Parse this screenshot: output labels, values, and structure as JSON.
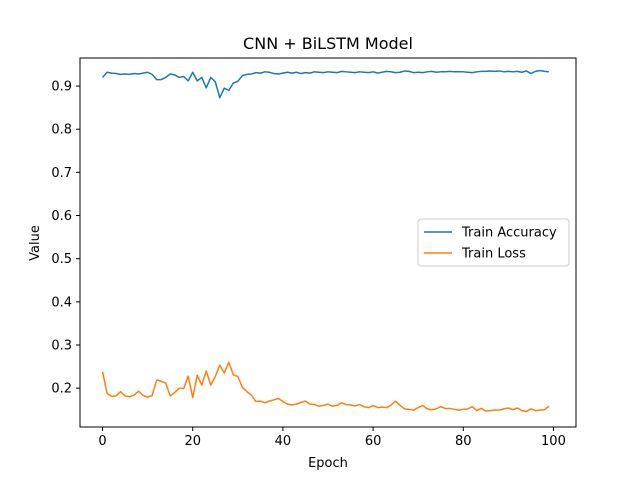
{
  "chart_data": {
    "type": "line",
    "title": "CNN + BiLSTM Model",
    "xlabel": "Epoch",
    "ylabel": "Value",
    "xlim": [
      -5,
      105
    ],
    "ylim": [
      0.11,
      0.965
    ],
    "xticks": [
      0,
      20,
      40,
      60,
      80,
      100
    ],
    "yticks": [
      0.2,
      0.3,
      0.4,
      0.5,
      0.6,
      0.7,
      0.8,
      0.9
    ],
    "ytick_labels": [
      "0.2",
      "0.3",
      "0.4",
      "0.5",
      "0.6",
      "0.7",
      "0.8",
      "0.9"
    ],
    "grid": false,
    "legend_position": "center-right",
    "x": [
      0,
      1,
      2,
      3,
      4,
      5,
      6,
      7,
      8,
      9,
      10,
      11,
      12,
      13,
      14,
      15,
      16,
      17,
      18,
      19,
      20,
      21,
      22,
      23,
      24,
      25,
      26,
      27,
      28,
      29,
      30,
      31,
      32,
      33,
      34,
      35,
      36,
      37,
      38,
      39,
      40,
      41,
      42,
      43,
      44,
      45,
      46,
      47,
      48,
      49,
      50,
      51,
      52,
      53,
      54,
      55,
      56,
      57,
      58,
      59,
      60,
      61,
      62,
      63,
      64,
      65,
      66,
      67,
      68,
      69,
      70,
      71,
      72,
      73,
      74,
      75,
      76,
      77,
      78,
      79,
      80,
      81,
      82,
      83,
      84,
      85,
      86,
      87,
      88,
      89,
      90,
      91,
      92,
      93,
      94,
      95,
      96,
      97,
      98,
      99
    ],
    "series": [
      {
        "name": "Train Accuracy",
        "color": "#1f77b4",
        "values": [
          0.92,
          0.932,
          0.93,
          0.929,
          0.927,
          0.928,
          0.927,
          0.929,
          0.928,
          0.93,
          0.932,
          0.927,
          0.915,
          0.915,
          0.92,
          0.928,
          0.926,
          0.92,
          0.922,
          0.912,
          0.932,
          0.912,
          0.92,
          0.896,
          0.92,
          0.91,
          0.873,
          0.895,
          0.89,
          0.907,
          0.911,
          0.924,
          0.927,
          0.928,
          0.931,
          0.93,
          0.933,
          0.932,
          0.929,
          0.928,
          0.93,
          0.932,
          0.93,
          0.932,
          0.929,
          0.931,
          0.93,
          0.933,
          0.932,
          0.931,
          0.933,
          0.932,
          0.931,
          0.934,
          0.933,
          0.932,
          0.931,
          0.933,
          0.932,
          0.931,
          0.933,
          0.93,
          0.932,
          0.934,
          0.933,
          0.931,
          0.932,
          0.935,
          0.934,
          0.931,
          0.932,
          0.931,
          0.933,
          0.934,
          0.932,
          0.933,
          0.933,
          0.934,
          0.933,
          0.933,
          0.933,
          0.932,
          0.931,
          0.933,
          0.934,
          0.934,
          0.935,
          0.934,
          0.935,
          0.933,
          0.934,
          0.933,
          0.934,
          0.932,
          0.935,
          0.929,
          0.934,
          0.936,
          0.934,
          0.933
        ]
      },
      {
        "name": "Train Loss",
        "color": "#ff7f0e",
        "values": [
          0.238,
          0.188,
          0.181,
          0.182,
          0.192,
          0.182,
          0.18,
          0.184,
          0.193,
          0.183,
          0.179,
          0.183,
          0.219,
          0.216,
          0.212,
          0.182,
          0.19,
          0.2,
          0.199,
          0.228,
          0.178,
          0.23,
          0.207,
          0.24,
          0.207,
          0.227,
          0.253,
          0.235,
          0.26,
          0.231,
          0.227,
          0.202,
          0.192,
          0.184,
          0.169,
          0.17,
          0.166,
          0.17,
          0.173,
          0.176,
          0.169,
          0.163,
          0.161,
          0.163,
          0.167,
          0.17,
          0.163,
          0.162,
          0.158,
          0.16,
          0.163,
          0.158,
          0.16,
          0.166,
          0.162,
          0.161,
          0.159,
          0.162,
          0.157,
          0.155,
          0.16,
          0.155,
          0.156,
          0.155,
          0.161,
          0.17,
          0.16,
          0.152,
          0.151,
          0.149,
          0.155,
          0.16,
          0.152,
          0.15,
          0.152,
          0.157,
          0.153,
          0.153,
          0.151,
          0.149,
          0.151,
          0.152,
          0.157,
          0.148,
          0.153,
          0.147,
          0.148,
          0.149,
          0.149,
          0.152,
          0.154,
          0.15,
          0.154,
          0.148,
          0.146,
          0.152,
          0.148,
          0.149,
          0.15,
          0.158
        ]
      }
    ]
  }
}
